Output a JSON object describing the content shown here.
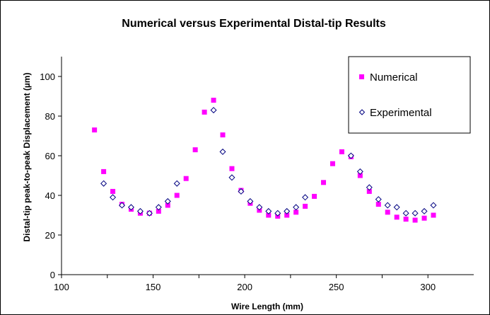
{
  "chart_data": {
    "type": "scatter",
    "title": "Numerical versus Experimental Distal-tip Results",
    "xlabel": "Wire Length (mm)",
    "ylabel": "Distal-tip peak-to-peak Displacement (µm)",
    "xlim": [
      100,
      325
    ],
    "ylim": [
      0,
      100
    ],
    "x_ticks": [
      100,
      150,
      200,
      250,
      300
    ],
    "y_ticks": [
      0,
      20,
      40,
      60,
      80,
      100
    ],
    "grid": false,
    "legend_position": "top-right",
    "series": [
      {
        "name": "Numerical",
        "marker": "square",
        "color": "#ff00ff",
        "points": [
          [
            118,
            73
          ],
          [
            123,
            52
          ],
          [
            128,
            42
          ],
          [
            133,
            35.5
          ],
          [
            138,
            33
          ],
          [
            143,
            31
          ],
          [
            148,
            31
          ],
          [
            153,
            32
          ],
          [
            158,
            35
          ],
          [
            163,
            40
          ],
          [
            168,
            48.5
          ],
          [
            173,
            63
          ],
          [
            178,
            82
          ],
          [
            183,
            88
          ],
          [
            188,
            70.5
          ],
          [
            193,
            53.5
          ],
          [
            198,
            42.5
          ],
          [
            203,
            36
          ],
          [
            208,
            32.5
          ],
          [
            213,
            30
          ],
          [
            218,
            29.5
          ],
          [
            223,
            30
          ],
          [
            228,
            31.5
          ],
          [
            233,
            34.5
          ],
          [
            238,
            39.5
          ],
          [
            243,
            46.5
          ],
          [
            248,
            56
          ],
          [
            253,
            62
          ],
          [
            258,
            59.5
          ],
          [
            263,
            50
          ],
          [
            268,
            42
          ],
          [
            273,
            35.5
          ],
          [
            278,
            31.5
          ],
          [
            283,
            29
          ],
          [
            288,
            28
          ],
          [
            293,
            27.5
          ],
          [
            298,
            28.5
          ],
          [
            303,
            30
          ]
        ]
      },
      {
        "name": "Experimental",
        "marker": "diamond",
        "color": "#000080",
        "points": [
          [
            123,
            46
          ],
          [
            128,
            39
          ],
          [
            133,
            35
          ],
          [
            138,
            34
          ],
          [
            143,
            32
          ],
          [
            148,
            31
          ],
          [
            153,
            34
          ],
          [
            158,
            37
          ],
          [
            163,
            46
          ],
          [
            183,
            83
          ],
          [
            188,
            62
          ],
          [
            193,
            49
          ],
          [
            198,
            42
          ],
          [
            203,
            37
          ],
          [
            208,
            34
          ],
          [
            213,
            32
          ],
          [
            218,
            31
          ],
          [
            223,
            32
          ],
          [
            228,
            34
          ],
          [
            233,
            39
          ],
          [
            258,
            60
          ],
          [
            263,
            52
          ],
          [
            268,
            44
          ],
          [
            273,
            38
          ],
          [
            278,
            35
          ],
          [
            283,
            34
          ],
          [
            288,
            31
          ],
          [
            293,
            31
          ],
          [
            298,
            32
          ],
          [
            303,
            35
          ]
        ]
      }
    ]
  }
}
